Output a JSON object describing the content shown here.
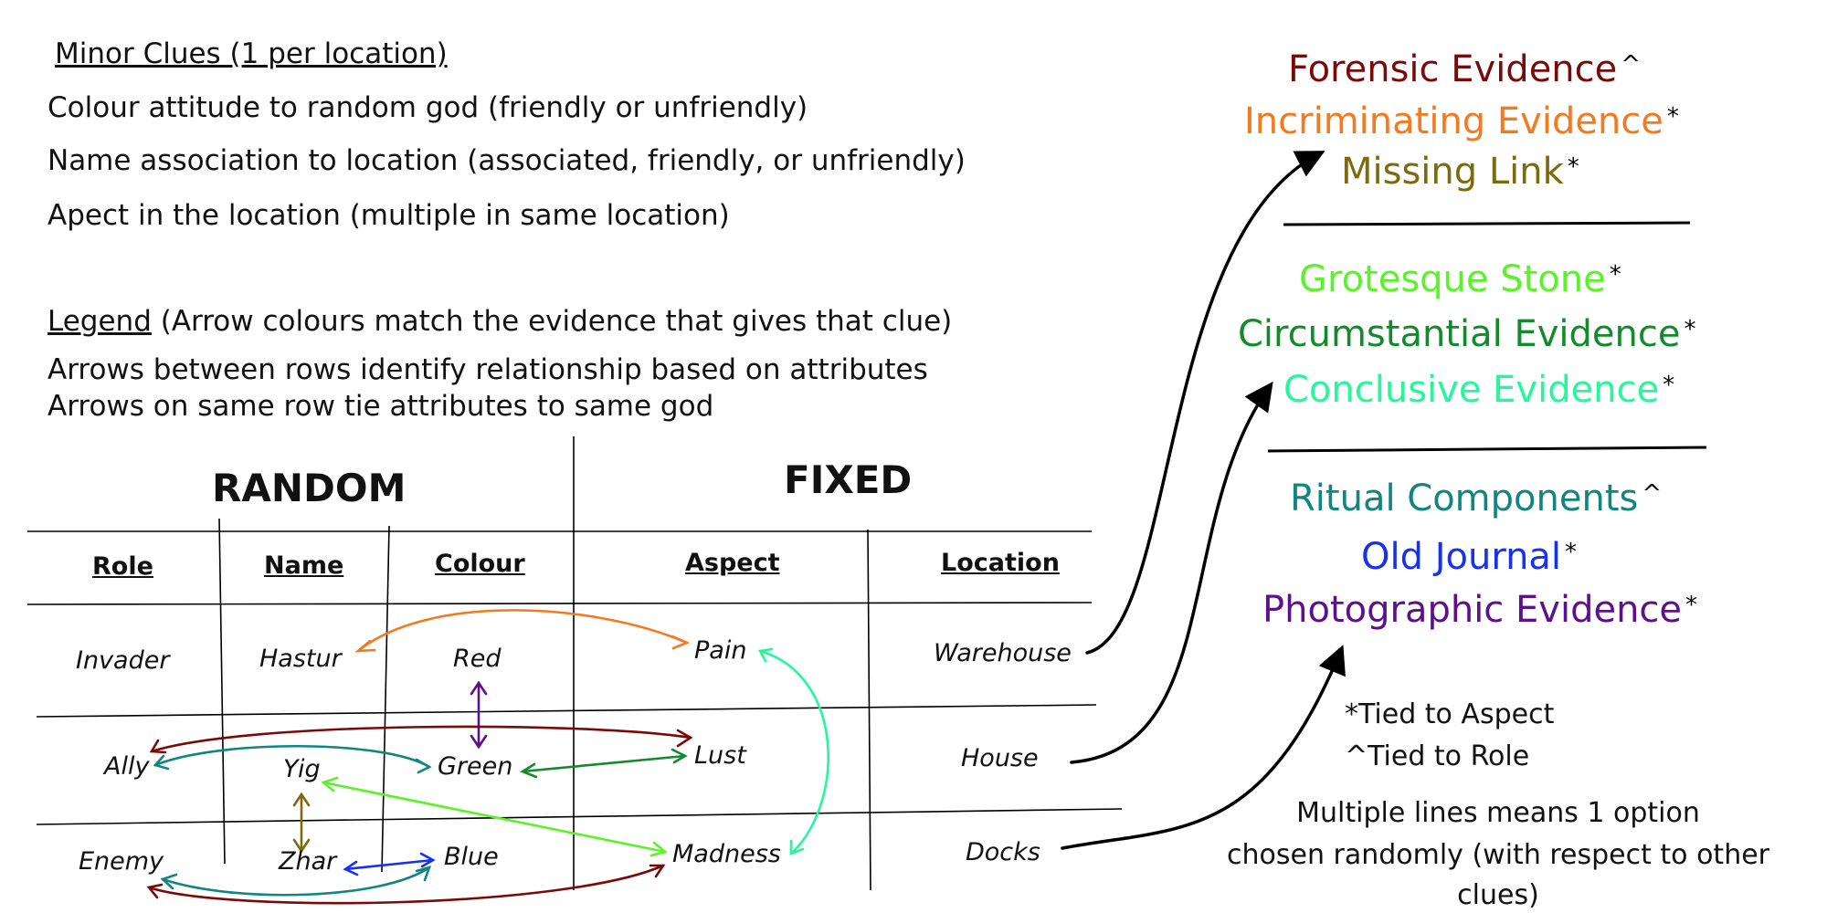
{
  "minor_clues": {
    "heading": "Minor Clues (1 per location)",
    "lines": [
      "Colour attitude to random god (friendly or unfriendly)",
      "Name association to location (associated, friendly, or unfriendly)",
      "Apect in the location  (multiple in same location)"
    ]
  },
  "legend": {
    "heading": "Legend",
    "heading_note": " (Arrow colours match the evidence that gives that clue)",
    "lines": [
      "Arrows between rows identify relationship based on attributes",
      "Arrows on same row tie attributes to same god"
    ]
  },
  "table": {
    "group_random": "RANDOM",
    "group_fixed": "FIXED",
    "columns": [
      "Role",
      "Name",
      "Colour",
      "Aspect",
      "Location"
    ],
    "rows": [
      [
        "Invader",
        "Hastur",
        "Red",
        "Pain",
        "Warehouse"
      ],
      [
        "Ally",
        "Yig",
        "Green",
        "Lust",
        "House"
      ],
      [
        "Enemy",
        "Zhar",
        "Blue",
        "Madness",
        "Docks"
      ]
    ]
  },
  "evidence_groups": [
    [
      {
        "label": "Forensic Evidence",
        "mark": "^",
        "color": "#7a0a0a"
      },
      {
        "label": "Incriminating Evidence",
        "mark": "*",
        "color": "#f47a20"
      },
      {
        "label": "Missing Link",
        "mark": "*",
        "color": "#7d6a10"
      }
    ],
    [
      {
        "label": "Grotesque Stone",
        "mark": "*",
        "color": "#5cf22a"
      },
      {
        "label": "Circumstantial Evidence",
        "mark": "*",
        "color": "#138a2b"
      },
      {
        "label": "Conclusive Evidence",
        "mark": "*",
        "color": "#25f79a"
      }
    ],
    [
      {
        "label": "Ritual Components",
        "mark": "^",
        "color": "#12857f"
      },
      {
        "label": "Old Journal",
        "mark": "*",
        "color": "#1531f2"
      },
      {
        "label": "Photographic Evidence",
        "mark": "*",
        "color": "#5e0f8a"
      }
    ]
  ],
  "notes": {
    "tied_aspect": "*Tied to Aspect",
    "tied_role": "^Tied to Role",
    "multiple": [
      "Multiple lines means 1 option",
      "chosen randomly (with respect to other",
      "clues)"
    ]
  },
  "colors": {
    "forensic": "#7a0a0a",
    "incriminating": "#f47a20",
    "missing_link": "#7d6a10",
    "grotesque": "#5cf22a",
    "circumstantial": "#138a2b",
    "conclusive": "#25f79a",
    "ritual": "#12857f",
    "journal": "#1531f2",
    "photographic": "#5e0f8a"
  }
}
